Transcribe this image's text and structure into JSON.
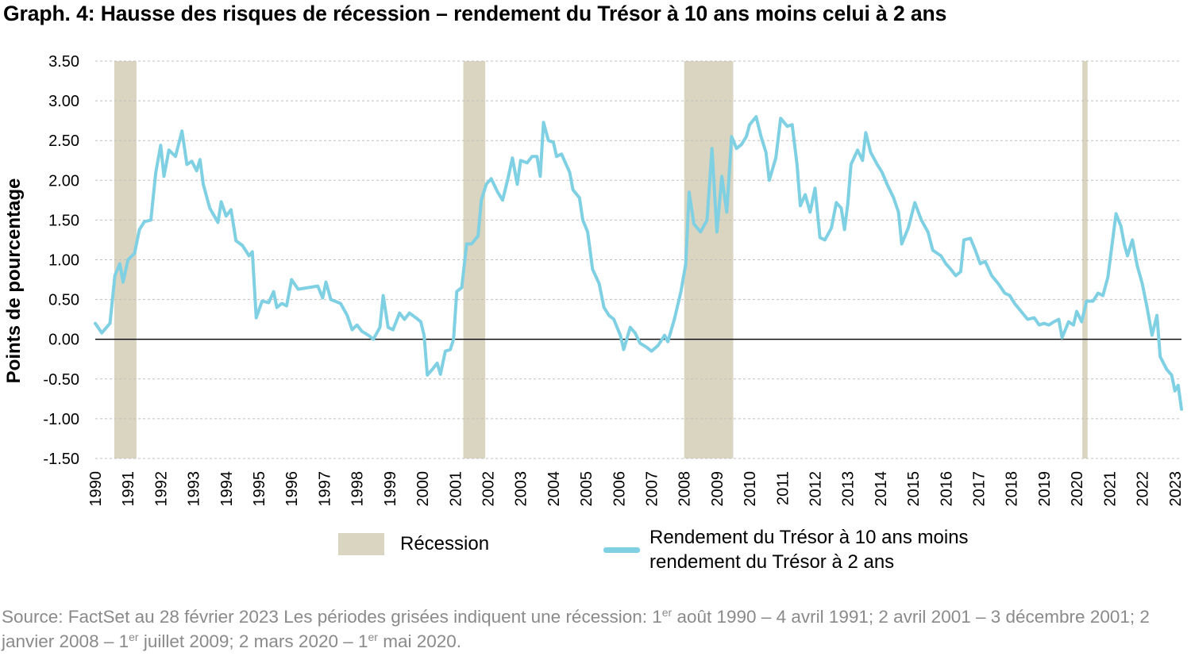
{
  "title": "Graph. 4: Hausse des risques de récession – rendement du Trésor à 10 ans moins celui à 2 ans",
  "colors": {
    "recession": "#d9d5c0",
    "series": "#7fd0e3",
    "grid": "#bfbfbf",
    "zero_line": "#000000"
  },
  "legend": {
    "recession_label": "Récession",
    "series_label": "Rendement du Trésor à 10 ans moins rendement du Trésor à 2 ans"
  },
  "source": {
    "text1": "Source: FactSet au 28 février 2023 Les périodes grisées indiquent une récession: 1",
    "sup1": "er",
    "text2": " août 1990 – 4 avril 1991; 2 avril 2001 – 3 décembre 2001; 2 janvier 2008 – 1",
    "sup2": "er",
    "text3": " juillet 2009; 2 mars 2020 – 1",
    "sup3": "er",
    "text4": " mai 2020."
  },
  "chart_data": {
    "type": "line",
    "title": "Graph. 4: Hausse des risques de récession – rendement du Trésor à 10 ans moins celui à 2 ans",
    "xlabel": "",
    "ylabel": "Points de pourcentage",
    "ylim": [
      -1.5,
      3.5
    ],
    "xlim": [
      1990,
      2023.2
    ],
    "y_ticks": [
      "3.50",
      "3.00",
      "2.50",
      "2.00",
      "1.50",
      "1.00",
      "0.50",
      "0.00",
      "-0.50",
      "-1.00",
      "-1.50"
    ],
    "x_ticks": [
      "1990",
      "1991",
      "1992",
      "1993",
      "1994",
      "1995",
      "1996",
      "1997",
      "1998",
      "1999",
      "2000",
      "2001",
      "2002",
      "2003",
      "2004",
      "2005",
      "2006",
      "2007",
      "2008",
      "2009",
      "2010",
      "2011",
      "2012",
      "2013",
      "2014",
      "2015",
      "2016",
      "2017",
      "2018",
      "2019",
      "2020",
      "2021",
      "2022",
      "2023"
    ],
    "grid": true,
    "legend_position": "bottom",
    "recessions": [
      {
        "start": 1990.58,
        "end": 1991.26
      },
      {
        "start": 2001.25,
        "end": 2001.92
      },
      {
        "start": 2008.0,
        "end": 2009.5
      },
      {
        "start": 2020.17,
        "end": 2020.33
      }
    ],
    "series": [
      {
        "name": "Rendement du Trésor à 10 ans moins rendement du Trésor à 2 ans",
        "points": [
          [
            1990.0,
            0.2
          ],
          [
            1990.2,
            0.08
          ],
          [
            1990.45,
            0.2
          ],
          [
            1990.6,
            0.8
          ],
          [
            1990.75,
            0.95
          ],
          [
            1990.85,
            0.72
          ],
          [
            1991.0,
            1.0
          ],
          [
            1991.2,
            1.08
          ],
          [
            1991.35,
            1.38
          ],
          [
            1991.5,
            1.48
          ],
          [
            1991.7,
            1.5
          ],
          [
            1991.85,
            2.1
          ],
          [
            1992.0,
            2.44
          ],
          [
            1992.1,
            2.05
          ],
          [
            1992.25,
            2.38
          ],
          [
            1992.45,
            2.3
          ],
          [
            1992.65,
            2.62
          ],
          [
            1992.8,
            2.2
          ],
          [
            1992.95,
            2.24
          ],
          [
            1993.1,
            2.12
          ],
          [
            1993.2,
            2.26
          ],
          [
            1993.3,
            1.95
          ],
          [
            1993.5,
            1.65
          ],
          [
            1993.75,
            1.47
          ],
          [
            1993.85,
            1.73
          ],
          [
            1994.0,
            1.55
          ],
          [
            1994.15,
            1.63
          ],
          [
            1994.3,
            1.24
          ],
          [
            1994.5,
            1.18
          ],
          [
            1994.7,
            1.05
          ],
          [
            1994.8,
            1.1
          ],
          [
            1994.92,
            0.27
          ],
          [
            1995.1,
            0.48
          ],
          [
            1995.3,
            0.46
          ],
          [
            1995.45,
            0.6
          ],
          [
            1995.55,
            0.4
          ],
          [
            1995.7,
            0.45
          ],
          [
            1995.85,
            0.42
          ],
          [
            1996.0,
            0.75
          ],
          [
            1996.2,
            0.63
          ],
          [
            1996.5,
            0.65
          ],
          [
            1996.8,
            0.67
          ],
          [
            1996.95,
            0.52
          ],
          [
            1997.05,
            0.72
          ],
          [
            1997.2,
            0.5
          ],
          [
            1997.5,
            0.45
          ],
          [
            1997.7,
            0.3
          ],
          [
            1997.85,
            0.12
          ],
          [
            1998.0,
            0.18
          ],
          [
            1998.15,
            0.1
          ],
          [
            1998.35,
            0.05
          ],
          [
            1998.5,
            0.0
          ],
          [
            1998.7,
            0.15
          ],
          [
            1998.8,
            0.55
          ],
          [
            1998.95,
            0.15
          ],
          [
            1999.1,
            0.12
          ],
          [
            1999.3,
            0.33
          ],
          [
            1999.45,
            0.25
          ],
          [
            1999.6,
            0.33
          ],
          [
            1999.8,
            0.27
          ],
          [
            1999.95,
            0.22
          ],
          [
            2000.05,
            0.05
          ],
          [
            2000.15,
            -0.45
          ],
          [
            2000.3,
            -0.38
          ],
          [
            2000.45,
            -0.3
          ],
          [
            2000.55,
            -0.44
          ],
          [
            2000.7,
            -0.15
          ],
          [
            2000.85,
            -0.13
          ],
          [
            2000.95,
            0.0
          ],
          [
            2001.05,
            0.6
          ],
          [
            2001.2,
            0.65
          ],
          [
            2001.35,
            1.2
          ],
          [
            2001.5,
            1.2
          ],
          [
            2001.7,
            1.3
          ],
          [
            2001.8,
            1.75
          ],
          [
            2001.95,
            1.95
          ],
          [
            2002.1,
            2.02
          ],
          [
            2002.3,
            1.85
          ],
          [
            2002.45,
            1.75
          ],
          [
            2002.6,
            2.0
          ],
          [
            2002.75,
            2.28
          ],
          [
            2002.9,
            1.95
          ],
          [
            2003.0,
            2.25
          ],
          [
            2003.2,
            2.22
          ],
          [
            2003.35,
            2.3
          ],
          [
            2003.5,
            2.3
          ],
          [
            2003.6,
            2.05
          ],
          [
            2003.7,
            2.73
          ],
          [
            2003.85,
            2.5
          ],
          [
            2004.0,
            2.48
          ],
          [
            2004.1,
            2.3
          ],
          [
            2004.25,
            2.33
          ],
          [
            2004.5,
            2.1
          ],
          [
            2004.6,
            1.88
          ],
          [
            2004.8,
            1.78
          ],
          [
            2004.9,
            1.5
          ],
          [
            2005.05,
            1.35
          ],
          [
            2005.2,
            0.88
          ],
          [
            2005.4,
            0.7
          ],
          [
            2005.55,
            0.4
          ],
          [
            2005.7,
            0.3
          ],
          [
            2005.85,
            0.25
          ],
          [
            2006.05,
            0.05
          ],
          [
            2006.15,
            -0.13
          ],
          [
            2006.35,
            0.15
          ],
          [
            2006.5,
            0.08
          ],
          [
            2006.65,
            -0.05
          ],
          [
            2006.85,
            -0.1
          ],
          [
            2007.0,
            -0.15
          ],
          [
            2007.2,
            -0.08
          ],
          [
            2007.4,
            0.05
          ],
          [
            2007.5,
            -0.03
          ],
          [
            2007.7,
            0.25
          ],
          [
            2007.9,
            0.6
          ],
          [
            2008.05,
            0.95
          ],
          [
            2008.15,
            1.85
          ],
          [
            2008.3,
            1.45
          ],
          [
            2008.5,
            1.35
          ],
          [
            2008.7,
            1.5
          ],
          [
            2008.85,
            2.4
          ],
          [
            2009.0,
            1.35
          ],
          [
            2009.15,
            2.05
          ],
          [
            2009.3,
            1.6
          ],
          [
            2009.45,
            2.55
          ],
          [
            2009.6,
            2.4
          ],
          [
            2009.75,
            2.45
          ],
          [
            2009.9,
            2.55
          ],
          [
            2010.0,
            2.7
          ],
          [
            2010.2,
            2.8
          ],
          [
            2010.35,
            2.55
          ],
          [
            2010.5,
            2.35
          ],
          [
            2010.6,
            2.0
          ],
          [
            2010.8,
            2.28
          ],
          [
            2010.95,
            2.78
          ],
          [
            2011.15,
            2.68
          ],
          [
            2011.3,
            2.7
          ],
          [
            2011.45,
            2.2
          ],
          [
            2011.55,
            1.68
          ],
          [
            2011.7,
            1.82
          ],
          [
            2011.85,
            1.6
          ],
          [
            2012.0,
            1.9
          ],
          [
            2012.15,
            1.28
          ],
          [
            2012.3,
            1.25
          ],
          [
            2012.5,
            1.4
          ],
          [
            2012.65,
            1.72
          ],
          [
            2012.8,
            1.65
          ],
          [
            2012.9,
            1.38
          ],
          [
            2013.0,
            1.7
          ],
          [
            2013.1,
            2.2
          ],
          [
            2013.3,
            2.38
          ],
          [
            2013.45,
            2.25
          ],
          [
            2013.55,
            2.6
          ],
          [
            2013.7,
            2.35
          ],
          [
            2013.9,
            2.2
          ],
          [
            2014.05,
            2.1
          ],
          [
            2014.2,
            1.95
          ],
          [
            2014.4,
            1.78
          ],
          [
            2014.55,
            1.6
          ],
          [
            2014.65,
            1.2
          ],
          [
            2014.85,
            1.4
          ],
          [
            2015.05,
            1.72
          ],
          [
            2015.25,
            1.5
          ],
          [
            2015.45,
            1.35
          ],
          [
            2015.6,
            1.12
          ],
          [
            2015.85,
            1.05
          ],
          [
            2016.0,
            0.95
          ],
          [
            2016.15,
            0.88
          ],
          [
            2016.3,
            0.8
          ],
          [
            2016.45,
            0.85
          ],
          [
            2016.55,
            1.25
          ],
          [
            2016.75,
            1.27
          ],
          [
            2016.9,
            1.12
          ],
          [
            2017.05,
            0.95
          ],
          [
            2017.2,
            0.98
          ],
          [
            2017.4,
            0.8
          ],
          [
            2017.6,
            0.7
          ],
          [
            2017.8,
            0.58
          ],
          [
            2017.95,
            0.55
          ],
          [
            2018.1,
            0.45
          ],
          [
            2018.3,
            0.35
          ],
          [
            2018.5,
            0.25
          ],
          [
            2018.7,
            0.27
          ],
          [
            2018.85,
            0.18
          ],
          [
            2019.0,
            0.2
          ],
          [
            2019.15,
            0.18
          ],
          [
            2019.3,
            0.22
          ],
          [
            2019.45,
            0.25
          ],
          [
            2019.55,
            0.02
          ],
          [
            2019.75,
            0.22
          ],
          [
            2019.9,
            0.18
          ],
          [
            2020.0,
            0.35
          ],
          [
            2020.15,
            0.22
          ],
          [
            2020.3,
            0.48
          ],
          [
            2020.5,
            0.48
          ],
          [
            2020.65,
            0.58
          ],
          [
            2020.8,
            0.55
          ],
          [
            2020.95,
            0.78
          ],
          [
            2021.05,
            1.1
          ],
          [
            2021.2,
            1.58
          ],
          [
            2021.35,
            1.42
          ],
          [
            2021.45,
            1.2
          ],
          [
            2021.55,
            1.05
          ],
          [
            2021.7,
            1.25
          ],
          [
            2021.85,
            0.92
          ],
          [
            2022.0,
            0.7
          ],
          [
            2022.15,
            0.4
          ],
          [
            2022.3,
            0.05
          ],
          [
            2022.45,
            0.3
          ],
          [
            2022.55,
            -0.22
          ],
          [
            2022.75,
            -0.38
          ],
          [
            2022.9,
            -0.45
          ],
          [
            2023.0,
            -0.65
          ],
          [
            2023.1,
            -0.58
          ],
          [
            2023.2,
            -0.88
          ]
        ]
      }
    ]
  }
}
